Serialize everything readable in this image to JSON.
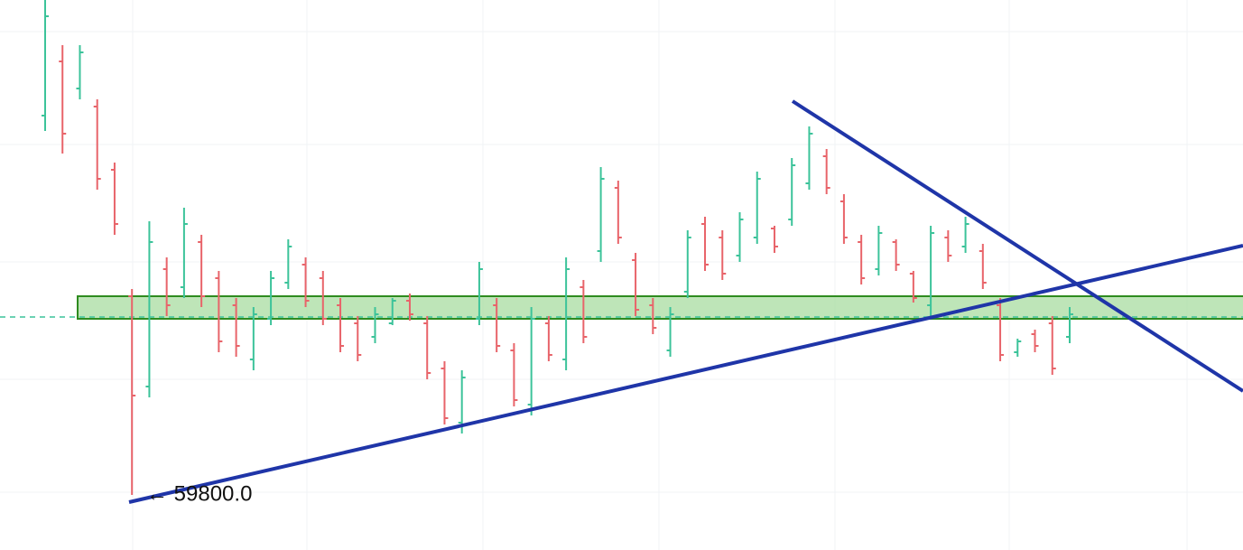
{
  "chart_data": {
    "type": "ohlc",
    "ylim": [
      59190,
      65280
    ],
    "up_color": "#3cc39a",
    "down_color": "#e8646a",
    "bars": {
      "high": [
        65280,
        64780,
        64780,
        64180,
        63480,
        62080,
        62830,
        62430,
        62980,
        62680,
        62280,
        61980,
        61880,
        62280,
        62630,
        62430,
        62280,
        61980,
        61780,
        61880,
        61980,
        62030,
        61780,
        61280,
        61180,
        62380,
        61980,
        61480,
        61880,
        61780,
        62430,
        62180,
        63430,
        63280,
        62480,
        61980,
        61880,
        62730,
        62880,
        62730,
        62930,
        63380,
        62780,
        63530,
        63880,
        63630,
        63130,
        62680,
        62780,
        62630,
        62280,
        62780,
        62730,
        62880,
        62580,
        61980,
        61530,
        61630,
        61780,
        61880
      ],
      "low": [
        63830,
        63580,
        64180,
        63180,
        62680,
        59800,
        60880,
        61780,
        61980,
        61880,
        61380,
        61330,
        61180,
        61680,
        62080,
        61880,
        61680,
        61380,
        61280,
        61480,
        61680,
        61730,
        61080,
        60580,
        60480,
        61680,
        61380,
        60780,
        60680,
        61280,
        61180,
        61480,
        62380,
        62580,
        61780,
        61580,
        61330,
        61980,
        62280,
        62180,
        62380,
        62580,
        62480,
        62780,
        63180,
        63130,
        62580,
        62130,
        62230,
        62280,
        61930,
        61780,
        62380,
        62480,
        62080,
        61280,
        61330,
        61380,
        61130,
        61480
      ],
      "open": [
        64000,
        64600,
        64300,
        64100,
        63400,
        62000,
        61000,
        62300,
        62100,
        62600,
        62200,
        61900,
        61300,
        61750,
        62150,
        62350,
        62200,
        61900,
        61700,
        61550,
        61700,
        61950,
        61700,
        61200,
        60600,
        61750,
        61900,
        61400,
        60800,
        61700,
        61300,
        62100,
        62500,
        63200,
        62400,
        61900,
        61400,
        62050,
        62800,
        62650,
        62450,
        62650,
        62750,
        62850,
        63250,
        63550,
        63050,
        62600,
        62300,
        62600,
        62250,
        61900,
        62650,
        62550,
        62500,
        61900,
        61380,
        61580,
        61700,
        61550
      ],
      "close": [
        65100,
        63800,
        64700,
        63300,
        62800,
        60900,
        62600,
        61900,
        62800,
        62000,
        61500,
        61450,
        61800,
        62200,
        62550,
        61950,
        61750,
        61450,
        61350,
        61800,
        61950,
        61800,
        61150,
        60650,
        61100,
        62300,
        61450,
        60850,
        61750,
        61350,
        62300,
        61550,
        63300,
        62650,
        61850,
        61650,
        61800,
        62650,
        62350,
        62250,
        62850,
        63300,
        62550,
        63450,
        63800,
        63200,
        62650,
        62200,
        62700,
        62350,
        61980,
        62700,
        62450,
        62800,
        62150,
        61350,
        61500,
        61450,
        61200,
        61800
      ]
    },
    "annotation": {
      "value": 59800,
      "label": "← 59800.0"
    }
  }
}
